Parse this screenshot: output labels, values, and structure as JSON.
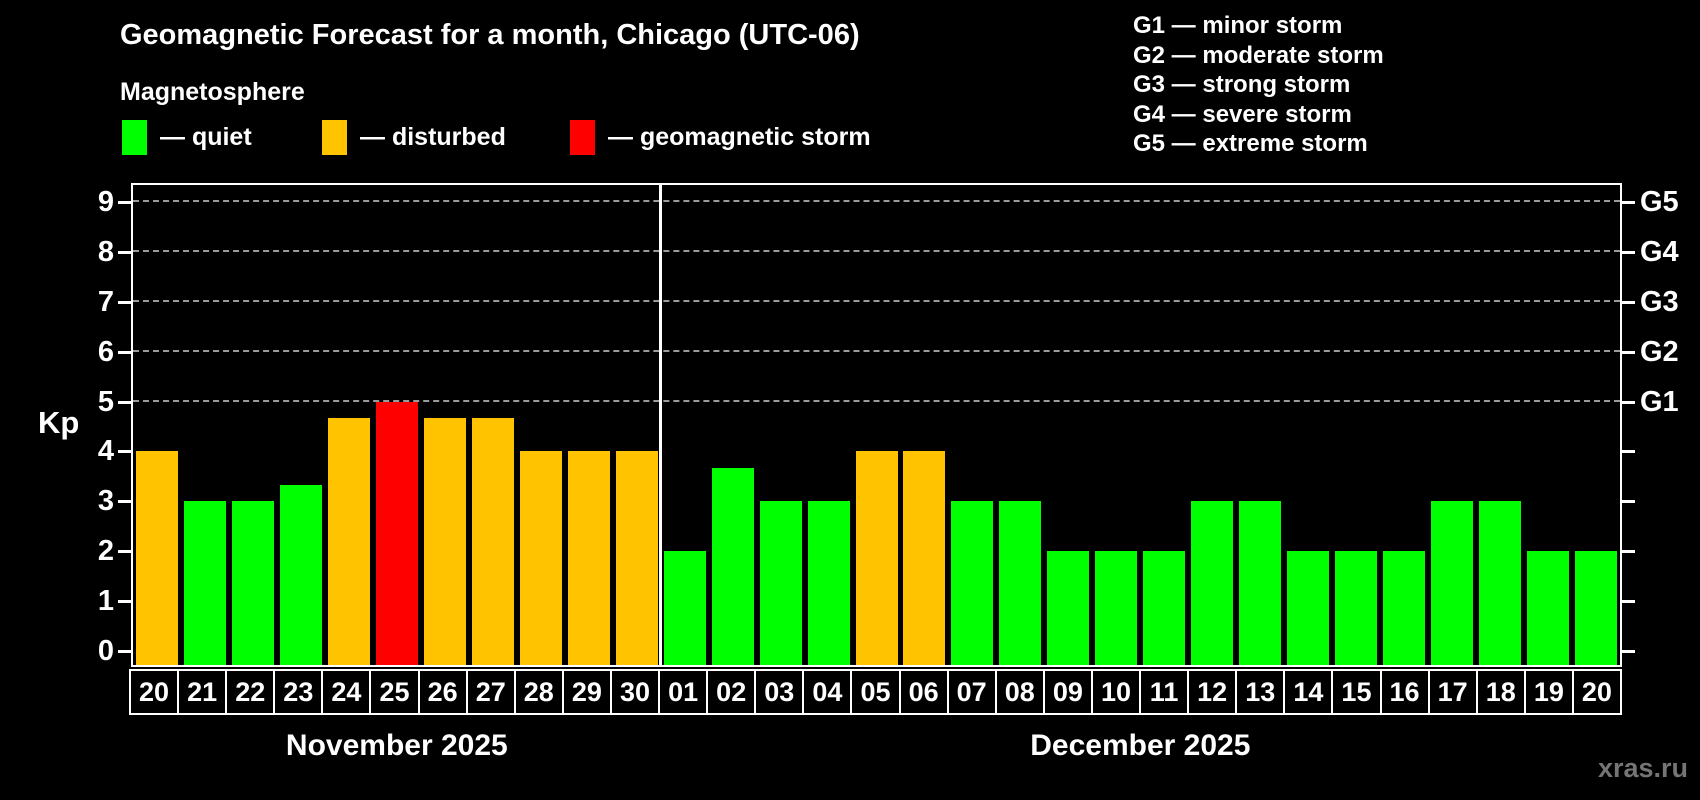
{
  "title": "Geomagnetic Forecast for a month, Chicago (UTC-06)",
  "subtitle": "Magnetosphere",
  "status_legend": [
    {
      "status": "quiet",
      "text": "— quiet",
      "color": "#00ff00"
    },
    {
      "status": "disturbed",
      "text": "— disturbed",
      "color": "#ffc300"
    },
    {
      "status": "storm",
      "text": "— geomagnetic storm",
      "color": "#ff0000"
    }
  ],
  "g_scale_legend": [
    {
      "code": "G1",
      "text": "G1 — minor storm"
    },
    {
      "code": "G2",
      "text": "G2 — moderate storm"
    },
    {
      "code": "G3",
      "text": "G3 — strong storm"
    },
    {
      "code": "G4",
      "text": "G4 — severe storm"
    },
    {
      "code": "G5",
      "text": "G5 — extreme storm"
    }
  ],
  "watermark": "xras.ru",
  "chart_data": {
    "type": "bar",
    "title": "Geomagnetic Forecast for a month, Chicago (UTC-06)",
    "ylabel": "Kp",
    "ylim": [
      0,
      9
    ],
    "yticks": [
      0,
      1,
      2,
      3,
      4,
      5,
      6,
      7,
      8,
      9
    ],
    "grid_kp_levels": [
      5,
      6,
      7,
      8,
      9
    ],
    "legend_position": "top",
    "right_axis_labels": [
      {
        "code": "G1",
        "kp": 5
      },
      {
        "code": "G2",
        "kp": 6
      },
      {
        "code": "G3",
        "kp": 7
      },
      {
        "code": "G4",
        "kp": 8
      },
      {
        "code": "G5",
        "kp": 9
      }
    ],
    "status_colors": {
      "quiet": "#00ff00",
      "disturbed": "#ffc300",
      "storm": "#ff0000"
    },
    "months": [
      {
        "label": "November 2025",
        "days": [
          {
            "date": "20",
            "kp": 4,
            "status": "disturbed"
          },
          {
            "date": "21",
            "kp": 3,
            "status": "quiet"
          },
          {
            "date": "22",
            "kp": 3,
            "status": "quiet"
          },
          {
            "date": "23",
            "kp": 3.33,
            "status": "quiet"
          },
          {
            "date": "24",
            "kp": 4.67,
            "status": "disturbed"
          },
          {
            "date": "25",
            "kp": 5,
            "status": "storm"
          },
          {
            "date": "26",
            "kp": 4.67,
            "status": "disturbed"
          },
          {
            "date": "27",
            "kp": 4.67,
            "status": "disturbed"
          },
          {
            "date": "28",
            "kp": 4,
            "status": "disturbed"
          },
          {
            "date": "29",
            "kp": 4,
            "status": "disturbed"
          },
          {
            "date": "30",
            "kp": 4,
            "status": "disturbed"
          }
        ]
      },
      {
        "label": "December 2025",
        "days": [
          {
            "date": "01",
            "kp": 2,
            "status": "quiet"
          },
          {
            "date": "02",
            "kp": 3.67,
            "status": "quiet"
          },
          {
            "date": "03",
            "kp": 3,
            "status": "quiet"
          },
          {
            "date": "04",
            "kp": 3,
            "status": "quiet"
          },
          {
            "date": "05",
            "kp": 4,
            "status": "disturbed"
          },
          {
            "date": "06",
            "kp": 4,
            "status": "disturbed"
          },
          {
            "date": "07",
            "kp": 3,
            "status": "quiet"
          },
          {
            "date": "08",
            "kp": 3,
            "status": "quiet"
          },
          {
            "date": "09",
            "kp": 2,
            "status": "quiet"
          },
          {
            "date": "10",
            "kp": 2,
            "status": "quiet"
          },
          {
            "date": "11",
            "kp": 2,
            "status": "quiet"
          },
          {
            "date": "12",
            "kp": 3,
            "status": "quiet"
          },
          {
            "date": "13",
            "kp": 3,
            "status": "quiet"
          },
          {
            "date": "14",
            "kp": 2,
            "status": "quiet"
          },
          {
            "date": "15",
            "kp": 2,
            "status": "quiet"
          },
          {
            "date": "16",
            "kp": 2,
            "status": "quiet"
          },
          {
            "date": "17",
            "kp": 3,
            "status": "quiet"
          },
          {
            "date": "18",
            "kp": 3,
            "status": "quiet"
          },
          {
            "date": "19",
            "kp": 2,
            "status": "quiet"
          },
          {
            "date": "20",
            "kp": 2,
            "status": "quiet"
          }
        ]
      }
    ]
  }
}
